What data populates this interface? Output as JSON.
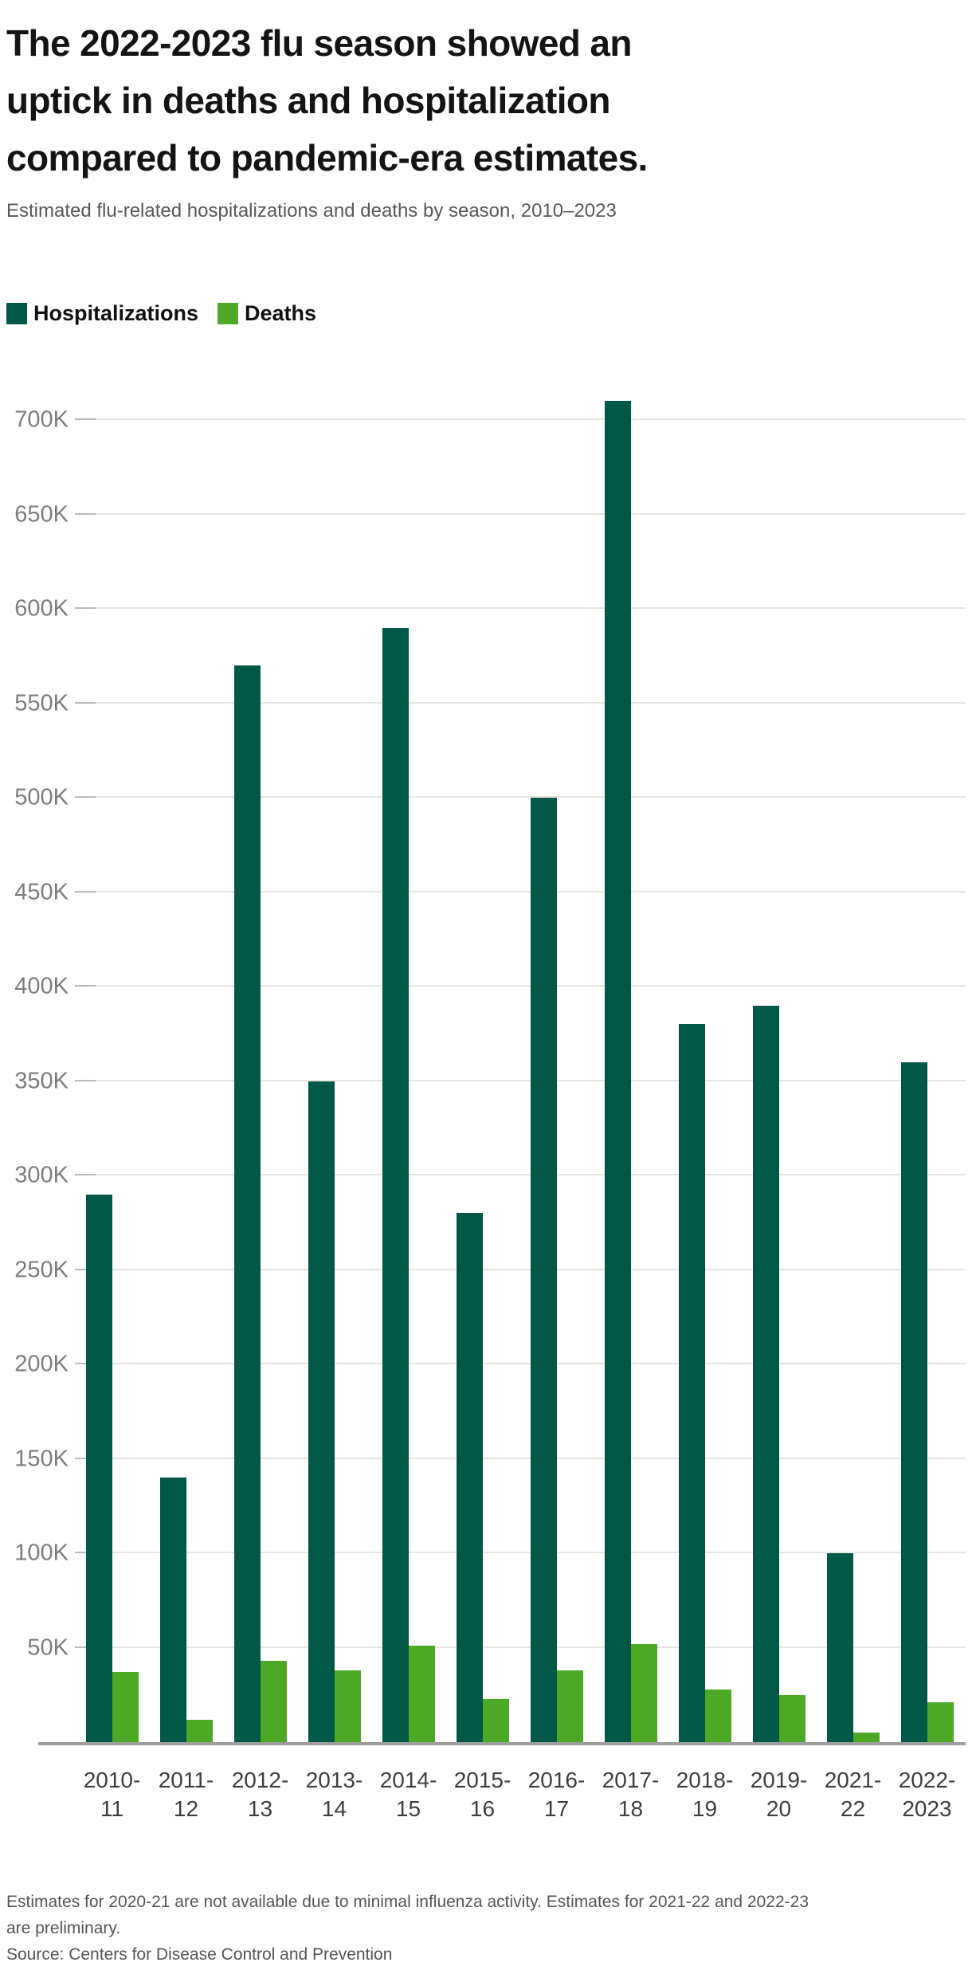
{
  "header": {
    "title_lines": [
      "The 2022-2023 flu season showed an",
      "uptick in deaths and hospitalization",
      "compared to pandemic-era estimates."
    ],
    "subtitle": "Estimated flu-related hospitalizations and deaths by season, 2010–2023"
  },
  "legend": {
    "items": [
      {
        "label": "Hospitalizations",
        "color": "#015847"
      },
      {
        "label": "Deaths",
        "color": "#4da825"
      }
    ]
  },
  "chart_data": {
    "type": "bar",
    "title": "The 2022-2023 flu season showed an uptick in deaths and hospitalization compared to pandemic-era estimates.",
    "subtitle": "Estimated flu-related hospitalizations and deaths by season, 2010–2023",
    "categories": [
      "2010-11",
      "2011-12",
      "2012-13",
      "2013-14",
      "2014-15",
      "2015-16",
      "2016-17",
      "2017-18",
      "2018-19",
      "2019-20",
      "2021-22",
      "2022-2023"
    ],
    "x_tick_label_lines": [
      [
        "2010-",
        "11"
      ],
      [
        "2011-",
        "12"
      ],
      [
        "2012-",
        "13"
      ],
      [
        "2013-",
        "14"
      ],
      [
        "2014-",
        "15"
      ],
      [
        "2015-",
        "16"
      ],
      [
        "2016-",
        "17"
      ],
      [
        "2017-",
        "18"
      ],
      [
        "2018-",
        "19"
      ],
      [
        "2019-",
        "20"
      ],
      [
        "2021-",
        "22"
      ],
      [
        "2022-",
        "2023"
      ]
    ],
    "series": [
      {
        "name": "Hospitalizations",
        "color": "#015847",
        "values": [
          290000,
          140000,
          570000,
          350000,
          590000,
          280000,
          500000,
          710000,
          380000,
          390000,
          100000,
          360000
        ]
      },
      {
        "name": "Deaths",
        "color": "#4da825",
        "values": [
          37000,
          12000,
          43000,
          38000,
          51000,
          23000,
          38000,
          52000,
          28000,
          25000,
          5000,
          21000
        ]
      }
    ],
    "ylim": [
      0,
      730000
    ],
    "y_ticks": [
      {
        "value": 50000,
        "label": "50K"
      },
      {
        "value": 100000,
        "label": "100K"
      },
      {
        "value": 150000,
        "label": "150K"
      },
      {
        "value": 200000,
        "label": "200K"
      },
      {
        "value": 250000,
        "label": "250K"
      },
      {
        "value": 300000,
        "label": "300K"
      },
      {
        "value": 350000,
        "label": "350K"
      },
      {
        "value": 400000,
        "label": "400K"
      },
      {
        "value": 450000,
        "label": "450K"
      },
      {
        "value": 500000,
        "label": "500K"
      },
      {
        "value": 550000,
        "label": "550K"
      },
      {
        "value": 600000,
        "label": "600K"
      },
      {
        "value": 650000,
        "label": "650K"
      },
      {
        "value": 700000,
        "label": "700K"
      }
    ],
    "grid": true,
    "legend_position": "top-left"
  },
  "footer": {
    "note_lines": [
      "Estimates for 2020-21 are not available due to minimal influenza activity. Estimates for 2021-22 and 2022-23",
      "are preliminary."
    ],
    "source": "Source: Centers for Disease Control and Prevention"
  }
}
